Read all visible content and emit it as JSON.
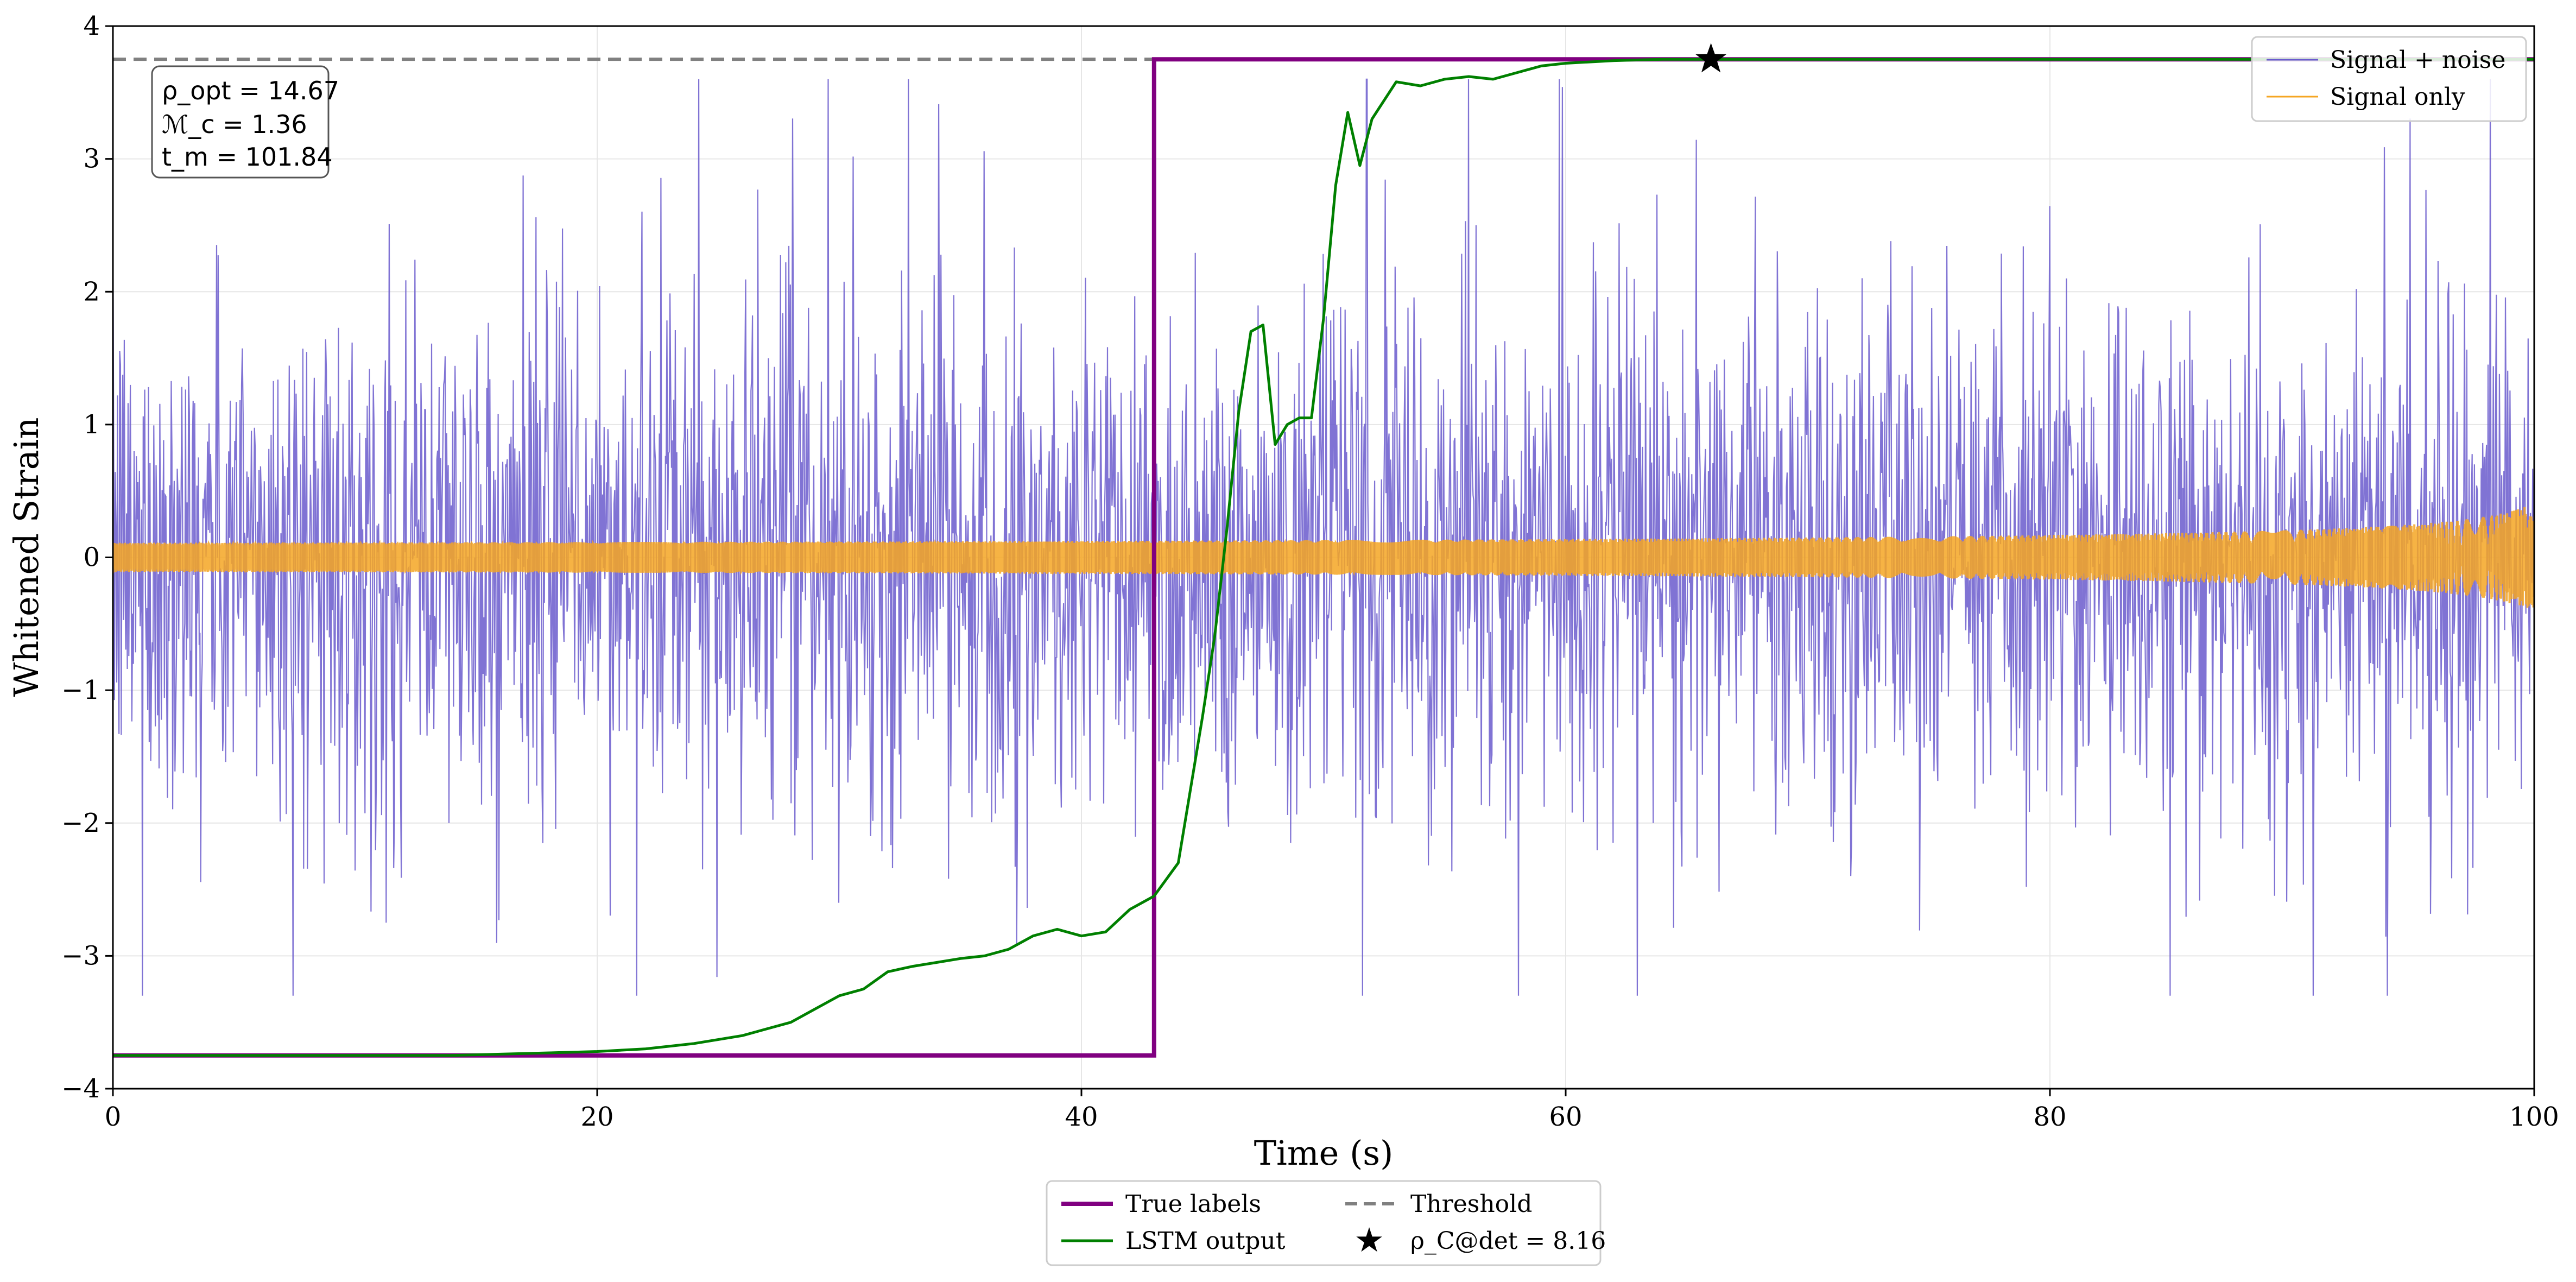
{
  "chart_data": {
    "type": "line",
    "title": "",
    "xlabel": "Time (s)",
    "ylabel": "Whitened Strain",
    "xlim": [
      0,
      100
    ],
    "ylim": [
      -4,
      4
    ],
    "x_ticks": [
      0,
      20,
      40,
      60,
      80,
      100
    ],
    "x_tick_labels": [
      "0",
      "20",
      "40",
      "60",
      "80",
      "100"
    ],
    "y_ticks": [
      -4,
      -3,
      -2,
      -1,
      0,
      1,
      2,
      3,
      4
    ],
    "y_tick_labels": [
      "−4",
      "−3",
      "−2",
      "−1",
      "0",
      "1",
      "2",
      "3",
      "4"
    ],
    "grid": true,
    "series": [
      {
        "name": "Signal + noise",
        "color": "#6a5acd",
        "style": "noise",
        "note": "dense noisy trace, amplitude roughly ±2.5 with spikes to ±3.5"
      },
      {
        "name": "Signal only",
        "color": "#f5a623",
        "style": "chirp",
        "note": "chirp near 0, amplitude growing from ~0.05 to ~0.35 toward t=100"
      },
      {
        "name": "True labels",
        "color": "#800080",
        "style": "step",
        "x": [
          0,
          43,
          43,
          100
        ],
        "y": [
          -3.75,
          -3.75,
          3.75,
          3.75
        ]
      },
      {
        "name": "LSTM output",
        "color": "#008000",
        "style": "line",
        "x": [
          0,
          10,
          14,
          16,
          18,
          20,
          22,
          24,
          26,
          27,
          28,
          29,
          30,
          31,
          32,
          33,
          34,
          35,
          36,
          37,
          38,
          39,
          40,
          41,
          42,
          43,
          44,
          45,
          45.5,
          46,
          46.5,
          47,
          47.5,
          48,
          48.5,
          49,
          49.5,
          50,
          50.5,
          51,
          51.5,
          52,
          53,
          54,
          55,
          56,
          57,
          58,
          59,
          60,
          62,
          64,
          66,
          70,
          100
        ],
        "y": [
          -3.75,
          -3.75,
          -3.75,
          -3.74,
          -3.73,
          -3.72,
          -3.7,
          -3.66,
          -3.6,
          -3.55,
          -3.5,
          -3.4,
          -3.3,
          -3.25,
          -3.12,
          -3.08,
          -3.05,
          -3.02,
          -3.0,
          -2.95,
          -2.85,
          -2.8,
          -2.85,
          -2.82,
          -2.65,
          -2.55,
          -2.3,
          -1.2,
          -0.6,
          0.2,
          1.1,
          1.7,
          1.75,
          0.85,
          1.0,
          1.05,
          1.05,
          1.8,
          2.8,
          3.35,
          2.95,
          3.3,
          3.58,
          3.55,
          3.6,
          3.62,
          3.6,
          3.65,
          3.7,
          3.72,
          3.74,
          3.75,
          3.75,
          3.75,
          3.75
        ]
      },
      {
        "name": "Threshold",
        "color": "#808080",
        "style": "dashed",
        "y": 3.75
      },
      {
        "name": "ρ_C@det = 8.16",
        "color": "#000000",
        "style": "marker-star",
        "x": 66,
        "y": 3.75
      }
    ],
    "legends": {
      "upper_right": [
        "Signal + noise",
        "Signal only"
      ],
      "bottom": [
        "True labels",
        "LSTM output",
        "Threshold",
        "ρ_C@det = 8.16"
      ]
    },
    "annotation": {
      "lines": [
        "ρ_opt = 14.67",
        "ℳ_c = 1.36",
        "t_m = 101.84"
      ],
      "position": "top-left"
    }
  }
}
